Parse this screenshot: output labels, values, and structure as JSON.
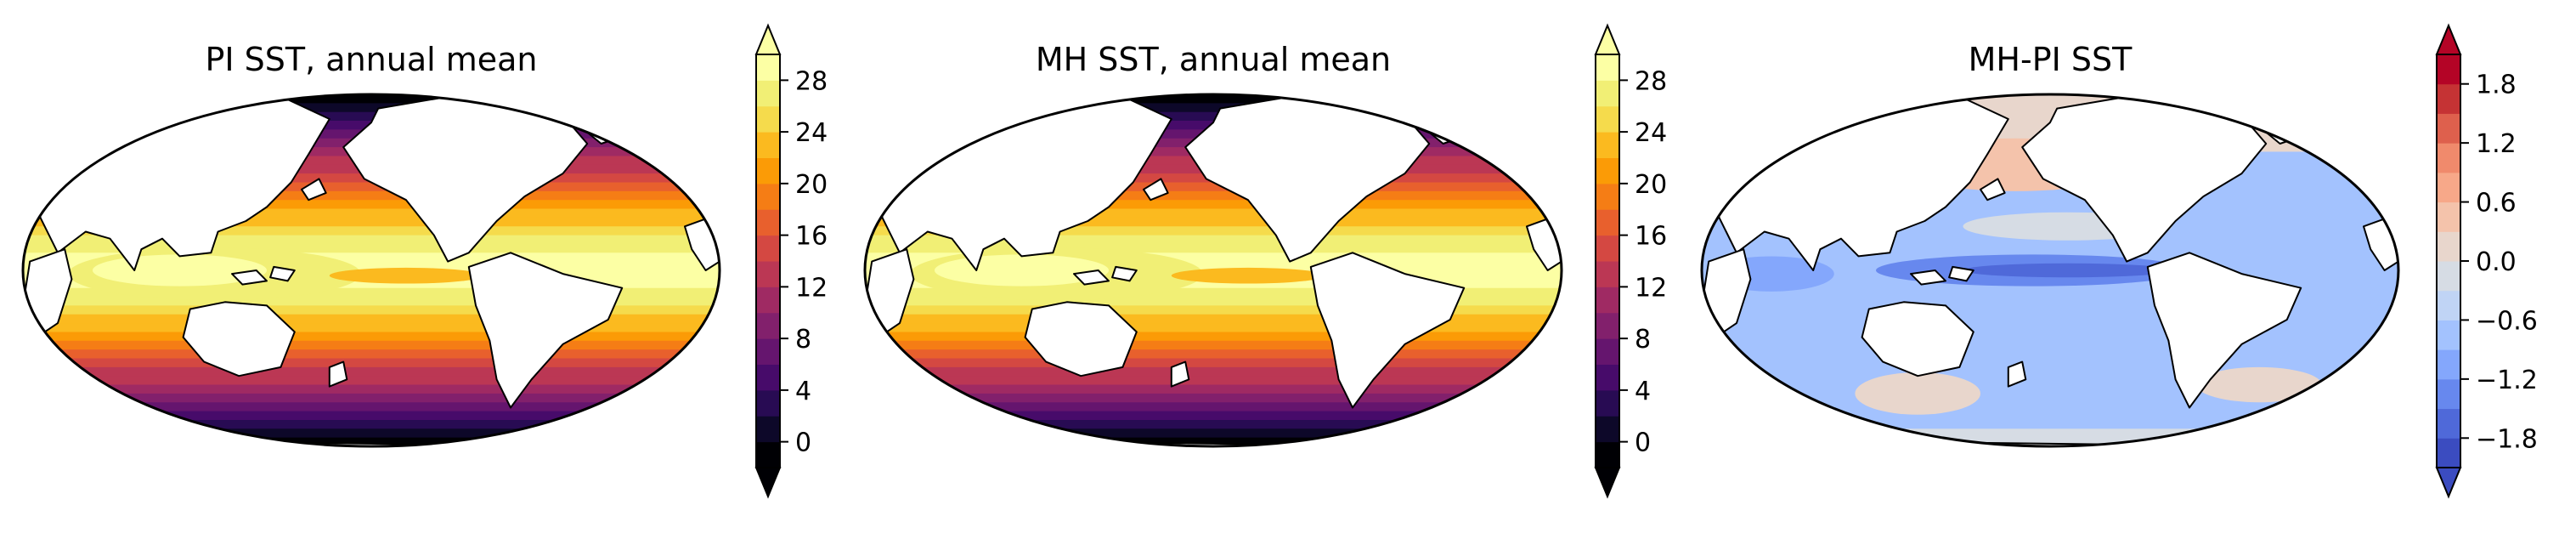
{
  "panels": [
    {
      "title": "PI SST, annual mean",
      "colormap": "inferno",
      "colorbar_ticks": [
        "0",
        "4",
        "8",
        "12",
        "16",
        "20",
        "24",
        "28"
      ],
      "colorbar_range": [
        -2,
        30
      ],
      "colorbar_levels": 16
    },
    {
      "title": "MH SST, annual mean",
      "colormap": "inferno",
      "colorbar_ticks": [
        "0",
        "4",
        "8",
        "12",
        "16",
        "20",
        "24",
        "28"
      ],
      "colorbar_range": [
        -2,
        30
      ],
      "colorbar_levels": 16
    },
    {
      "title": "MH-PI SST",
      "colormap": "coolwarm",
      "colorbar_ticks": [
        "−1.8",
        "−1.2",
        "−0.6",
        "0.0",
        "0.6",
        "1.2",
        "1.8"
      ],
      "colorbar_range": [
        -2.1,
        2.1
      ],
      "colorbar_levels": 14
    }
  ],
  "colors": {
    "inferno": [
      "#000004",
      "#0d0829",
      "#280b53",
      "#470b6a",
      "#65156e",
      "#82206c",
      "#9f2a63",
      "#bb3754",
      "#d44842",
      "#e8602d",
      "#f57d15",
      "#fb9b06",
      "#fbba1f",
      "#f5db4c",
      "#f1ef75",
      "#fcffa4"
    ],
    "coolwarm": [
      "#3b4cc0",
      "#4f69d9",
      "#6788ee",
      "#84a7fc",
      "#a3c2fe",
      "#c0d4f5",
      "#d6dce4",
      "#e8d6cc",
      "#f4c3ab",
      "#f7a889",
      "#f08a6c",
      "#de604d",
      "#c53334",
      "#b40426"
    ],
    "land": "#ffffff",
    "outline": "#000000"
  }
}
